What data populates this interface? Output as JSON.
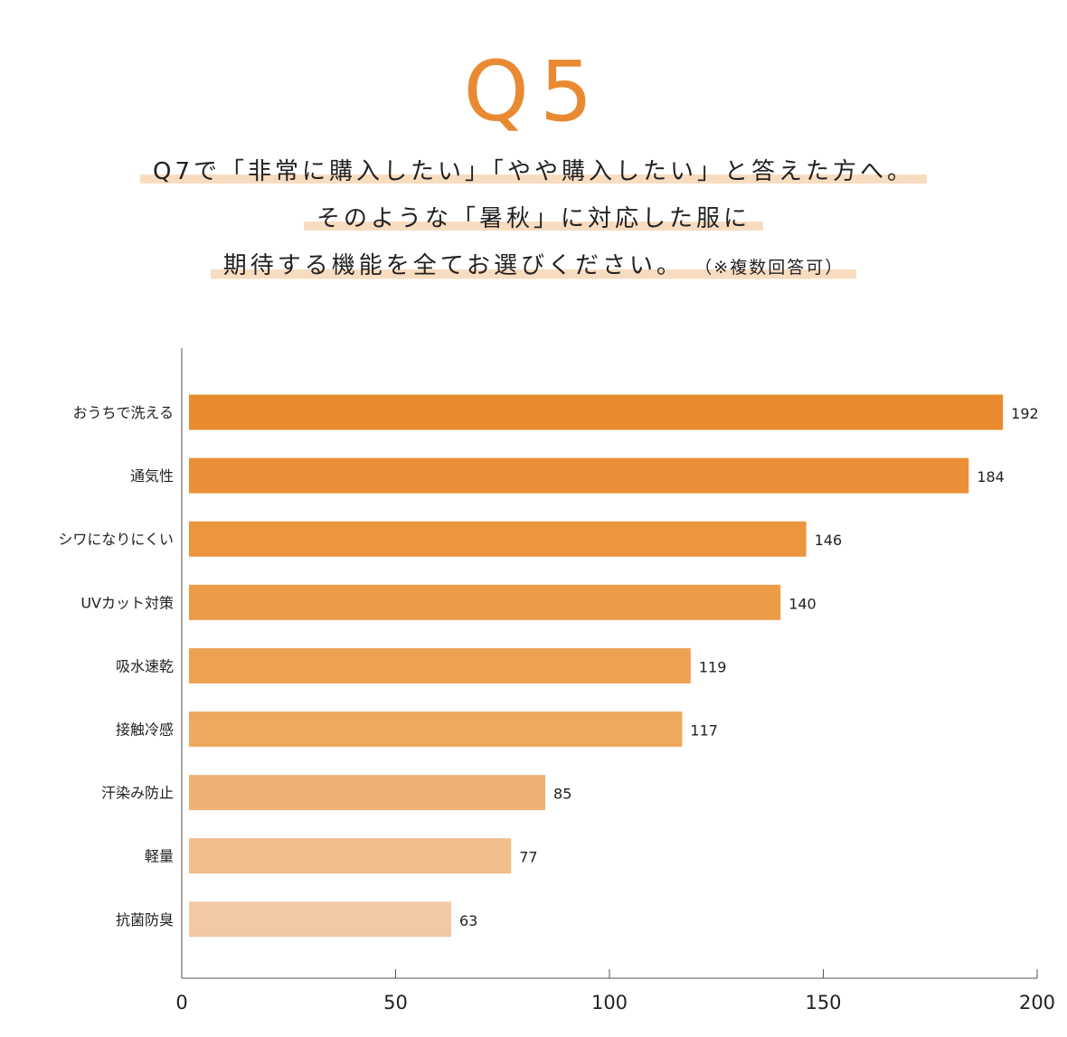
{
  "header": {
    "q_number": "Q5",
    "line1": "Q7で「非常に購入したい」「やや購入したい」と答えた方へ。",
    "line2": "そのような「暑秋」に対応した服に",
    "line3_main": "期待する機能を全てお選びください。",
    "line3_note": "（※複数回答可）"
  },
  "chart_data": {
    "type": "bar",
    "orientation": "horizontal",
    "categories": [
      "おうちで洗える",
      "通気性",
      "シワになりにくい",
      "UVカット対策",
      "吸水速乾",
      "接触冷感",
      "汗染み防止",
      "軽量",
      "抗菌防臭"
    ],
    "values": [
      192,
      184,
      146,
      140,
      119,
      117,
      85,
      77,
      63
    ],
    "xlim": [
      0,
      200
    ],
    "xticks": [
      "0",
      "50",
      "100",
      "150",
      "200"
    ],
    "grid": false,
    "colors": [
      "#e98a2e",
      "#ea8f35",
      "#eb953d",
      "#ec9b46",
      "#eda252",
      "#eea95e",
      "#efb173",
      "#f0bd8c",
      "#f1c9a5"
    ]
  }
}
